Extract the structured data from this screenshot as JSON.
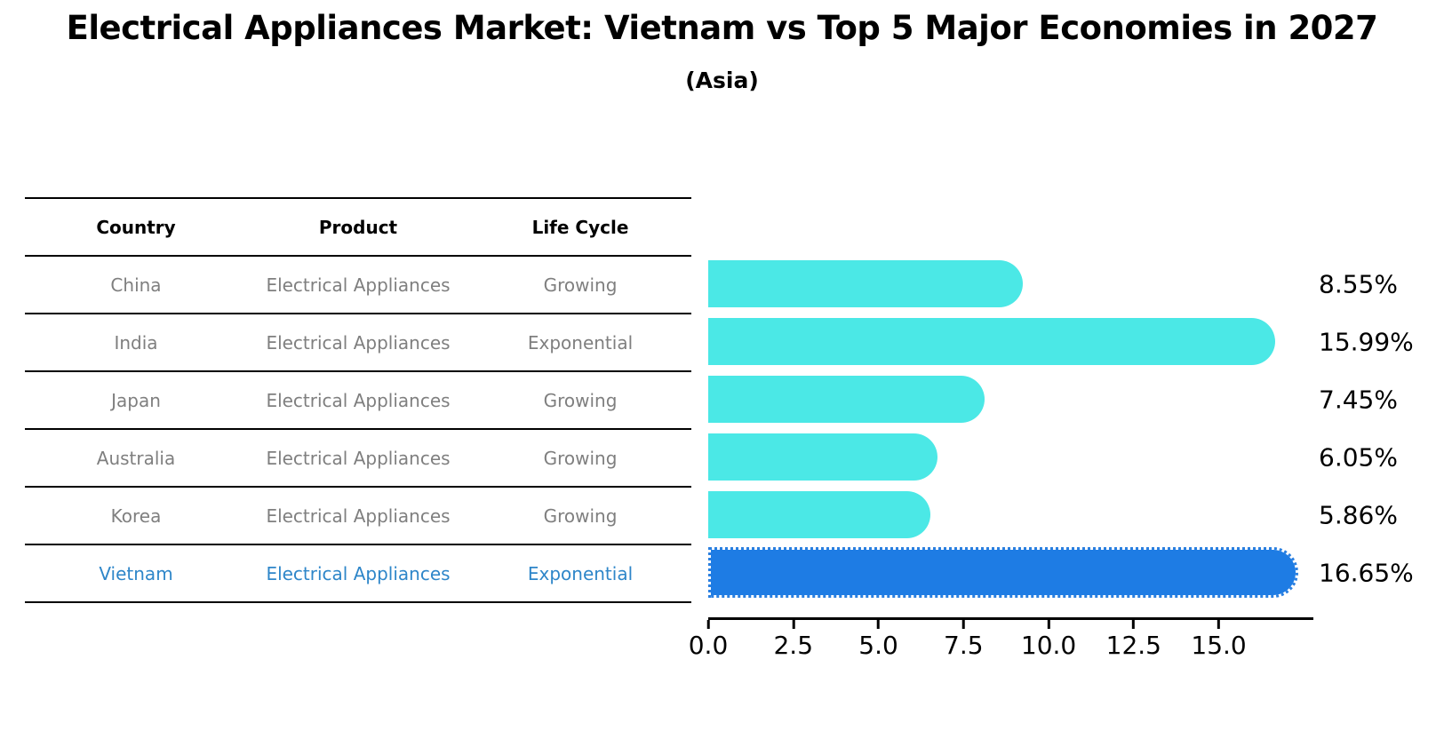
{
  "title": "Electrical Appliances Market: Vietnam vs Top 5 Major Economies in 2027",
  "subtitle": "(Asia)",
  "table": {
    "headers": [
      "Country",
      "Product",
      "Life Cycle"
    ],
    "rows": [
      {
        "country": "China",
        "product": "Electrical Appliances",
        "life_cycle": "Growing"
      },
      {
        "country": "India",
        "product": "Electrical Appliances",
        "life_cycle": "Exponential"
      },
      {
        "country": "Japan",
        "product": "Electrical Appliances",
        "life_cycle": "Growing"
      },
      {
        "country": "Australia",
        "product": "Electrical Appliances",
        "life_cycle": "Growing"
      },
      {
        "country": "Korea",
        "product": "Electrical Appliances",
        "life_cycle": "Growing"
      },
      {
        "country": "Vietnam",
        "product": "Electrical Appliances",
        "life_cycle": "Exponential"
      }
    ]
  },
  "chart_data": {
    "type": "bar",
    "orientation": "horizontal",
    "title": "Electrical Appliances Market: Vietnam vs Top 5 Major Economies in 2027 (Asia)",
    "categories": [
      "China",
      "India",
      "Japan",
      "Australia",
      "Korea",
      "Vietnam"
    ],
    "values": [
      8.55,
      15.99,
      7.45,
      6.05,
      5.86,
      16.65
    ],
    "value_labels": [
      "8.55%",
      "15.99%",
      "7.45%",
      "6.05%",
      "5.86%",
      "16.65%"
    ],
    "xlim": [
      0,
      17.7
    ],
    "x_ticks": [
      0.0,
      2.5,
      5.0,
      7.5,
      10.0,
      12.5,
      15.0
    ],
    "x_tick_labels": [
      "0.0",
      "2.5",
      "5.0",
      "7.5",
      "10.0",
      "12.5",
      "15.0"
    ],
    "grid": false,
    "legend": false,
    "highlight_index": 5,
    "bar_color": "#4BE8E6",
    "highlight_color": "#1E7CE4",
    "highlight_edge_color": "#2a7fe0",
    "highlight_text_color": "#2e86c9",
    "text_color": "#7f7f7f"
  }
}
